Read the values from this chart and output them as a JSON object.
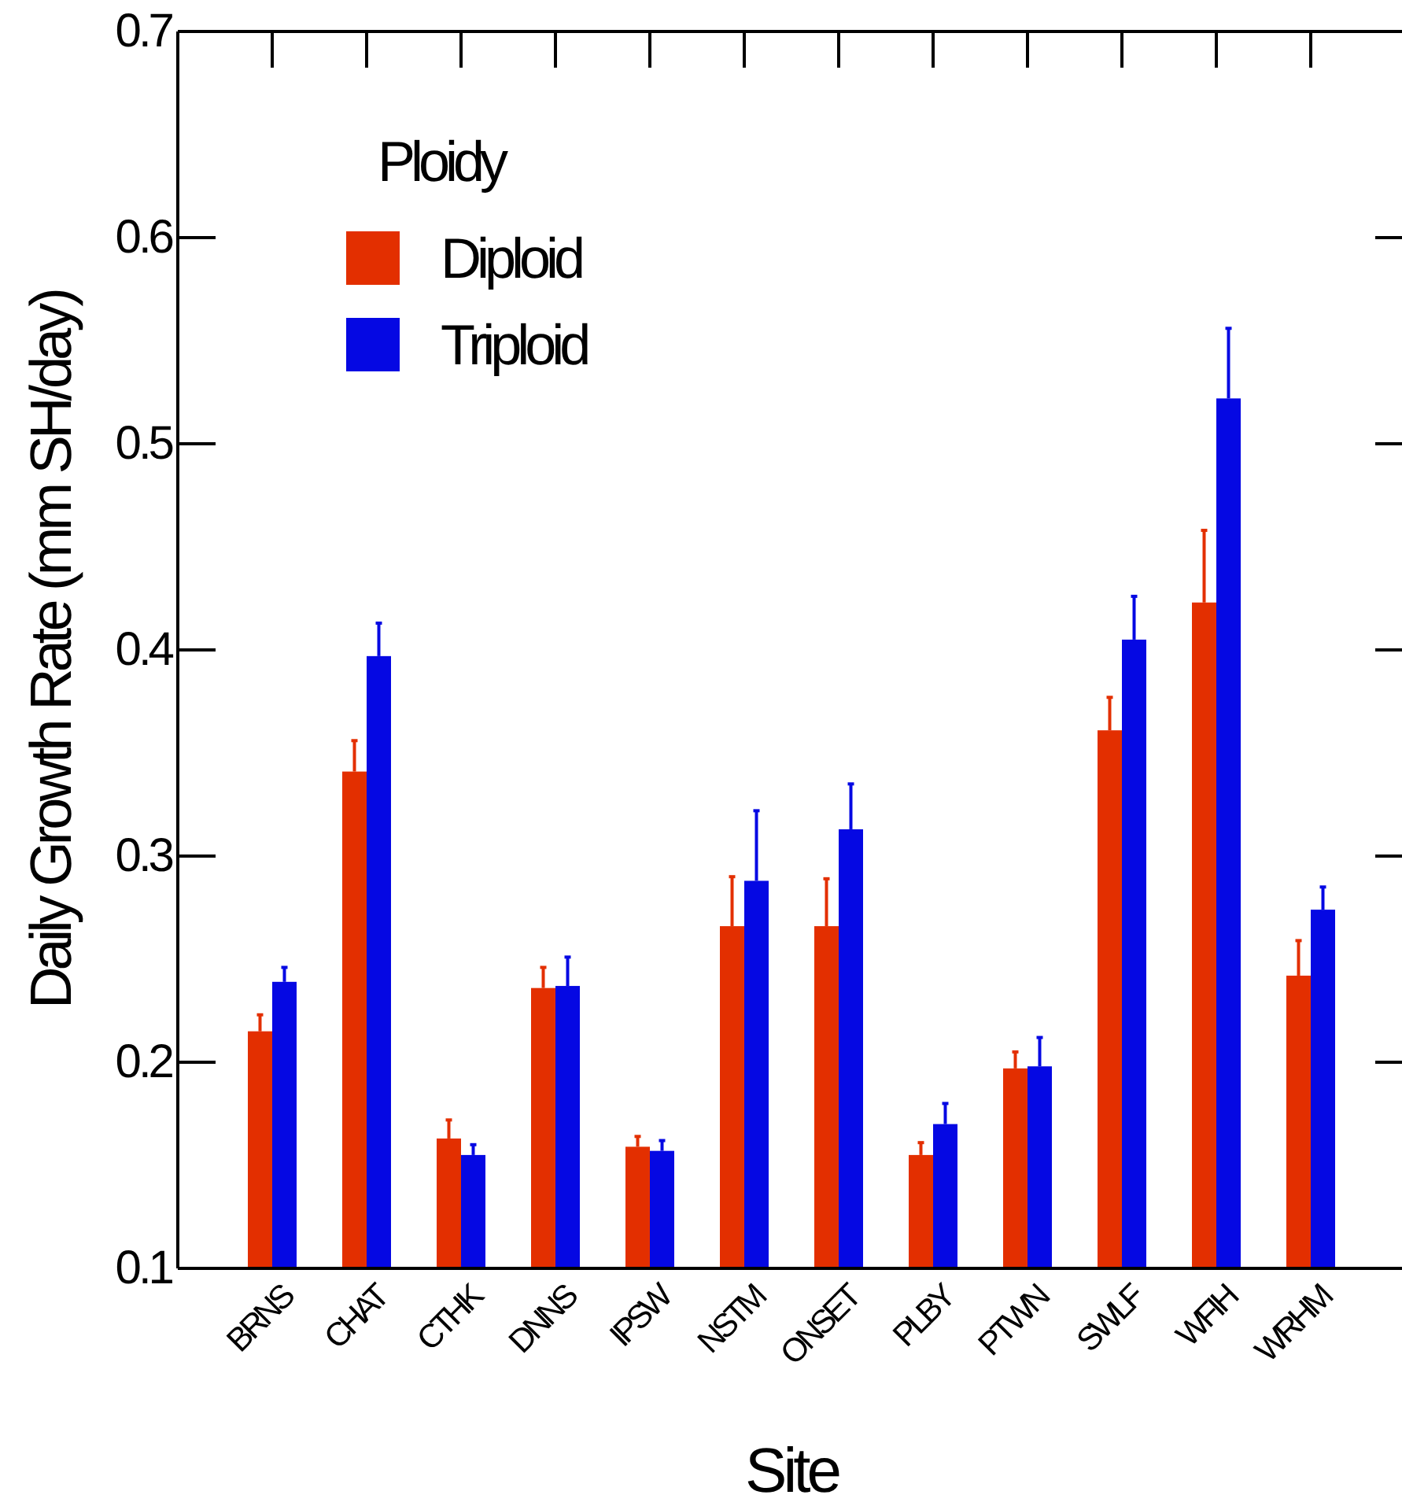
{
  "chart_data": {
    "type": "bar",
    "xlabel": "Site",
    "ylabel": "Daily Growth Rate (mm SH/day)",
    "legend_title": "Ploidy",
    "legend": "top left",
    "categories": [
      "BRNS",
      "CHAT",
      "CTHK",
      "DNNS",
      "IPSW",
      "NSTM",
      "ONSET",
      "PLBY",
      "PTWN",
      "SWLF",
      "WFIH",
      "WRHM"
    ],
    "series": [
      {
        "name": "Diploid",
        "color": "#e32f00",
        "values": [
          0.215,
          0.341,
          0.163,
          0.236,
          0.159,
          0.266,
          0.266,
          0.155,
          0.197,
          0.361,
          0.423,
          0.242
        ],
        "errors": [
          [
            0.215,
            0.223
          ],
          [
            0.341,
            0.356
          ],
          [
            0.163,
            0.172
          ],
          [
            0.236,
            0.246
          ],
          [
            0.159,
            0.164
          ],
          [
            0.266,
            0.29
          ],
          [
            0.266,
            0.289
          ],
          [
            0.155,
            0.161
          ],
          [
            0.197,
            0.205
          ],
          [
            0.361,
            0.377
          ],
          [
            0.423,
            0.458
          ],
          [
            0.242,
            0.259
          ]
        ]
      },
      {
        "name": "Triploid",
        "color": "#0508e3",
        "values": [
          0.239,
          0.397,
          0.155,
          0.237,
          0.157,
          0.288,
          0.313,
          0.17,
          0.198,
          0.405,
          0.522,
          0.274
        ],
        "errors": [
          [
            0.239,
            0.246
          ],
          [
            0.397,
            0.413
          ],
          [
            0.155,
            0.16
          ],
          [
            0.237,
            0.251
          ],
          [
            0.157,
            0.162
          ],
          [
            0.288,
            0.322
          ],
          [
            0.313,
            0.335
          ],
          [
            0.17,
            0.18
          ],
          [
            0.198,
            0.212
          ],
          [
            0.405,
            0.426
          ],
          [
            0.522,
            0.556
          ],
          [
            0.274,
            0.285
          ]
        ]
      }
    ],
    "ylim": [
      0.1,
      0.7
    ],
    "yticks": [
      0.1,
      0.2,
      0.3,
      0.4,
      0.5,
      0.6,
      0.7
    ],
    "grid": false
  }
}
